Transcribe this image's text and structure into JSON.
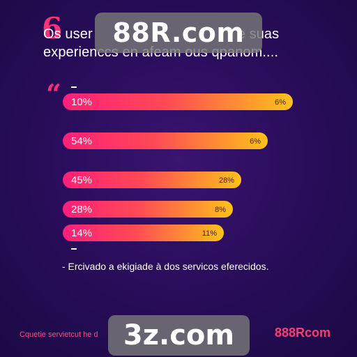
{
  "header": {
    "line1_left": "Os user",
    "line1_right": "e suas",
    "line2": "experienccs en afeam ous qpanom...."
  },
  "watermarks": {
    "top": "88R.com",
    "bottom": "3z.com"
  },
  "footer": {
    "note": "- Ercivado a ekigiade à dos servicos eferecidos.",
    "bottom_left": "Cquetie servietcut he d",
    "brand": "888Rcom"
  },
  "colors": {
    "background": "#2a0d5c",
    "accent": "#ff2f7a",
    "bar_gradient_start": "#ff1f7a",
    "bar_gradient_end": "#ffc21a"
  },
  "chart_data": {
    "type": "bar",
    "orientation": "horizontal",
    "categories": [
      "10%",
      "54%",
      "45%",
      "28%",
      "14%"
    ],
    "series": [
      {
        "values": [
          10,
          54,
          45,
          28,
          14
        ],
        "end_labels": [
          "6%",
          "6%",
          "28%",
          "8%",
          "11%"
        ]
      }
    ]
  }
}
